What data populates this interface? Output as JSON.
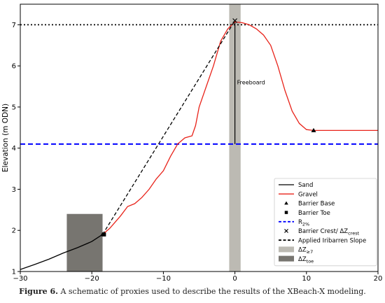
{
  "chart_data": {
    "type": "line",
    "xlabel": "",
    "ylabel": "Elevation (m ODN)",
    "xlim": [
      -30,
      20
    ],
    "ylim": [
      1,
      7.5
    ],
    "xticks": [
      -30,
      -20,
      -10,
      0,
      10,
      20
    ],
    "yticks": [
      1,
      2,
      3,
      4,
      5,
      6,
      7
    ],
    "grid": false,
    "legend_position": "lower-right",
    "series": [
      {
        "name": "Sand",
        "color": "#000000",
        "style": "solid",
        "points": [
          [
            -30,
            1.05
          ],
          [
            -28,
            1.17
          ],
          [
            -26,
            1.3
          ],
          [
            -24,
            1.45
          ],
          [
            -22,
            1.58
          ],
          [
            -20,
            1.73
          ],
          [
            -18.5,
            1.9
          ]
        ]
      },
      {
        "name": "Gravel",
        "color": "#e8231a",
        "style": "solid",
        "points": [
          [
            -18.5,
            1.9
          ],
          [
            -17.5,
            2.05
          ],
          [
            -16,
            2.35
          ],
          [
            -15,
            2.58
          ],
          [
            -14,
            2.65
          ],
          [
            -13,
            2.8
          ],
          [
            -12,
            3.0
          ],
          [
            -11,
            3.25
          ],
          [
            -10,
            3.45
          ],
          [
            -9,
            3.8
          ],
          [
            -8,
            4.1
          ],
          [
            -7,
            4.25
          ],
          [
            -6,
            4.3
          ],
          [
            -5.5,
            4.55
          ],
          [
            -5,
            5.0
          ],
          [
            -4,
            5.5
          ],
          [
            -3,
            6.0
          ],
          [
            -2,
            6.6
          ],
          [
            -1,
            6.9
          ],
          [
            0,
            7.07
          ],
          [
            1,
            7.05
          ],
          [
            2,
            7.0
          ],
          [
            3,
            6.9
          ],
          [
            4,
            6.75
          ],
          [
            5,
            6.5
          ],
          [
            6,
            6.0
          ],
          [
            7,
            5.4
          ],
          [
            8,
            4.9
          ],
          [
            9,
            4.6
          ],
          [
            10,
            4.45
          ],
          [
            11,
            4.43
          ],
          [
            20,
            4.43
          ]
        ]
      },
      {
        "name": "Applied Iribarren Slope",
        "color": "#000000",
        "style": "dashed",
        "points": [
          [
            -18.5,
            1.9
          ],
          [
            0,
            7.1
          ]
        ]
      }
    ],
    "reference_lines": [
      {
        "name": "R_2%",
        "axis": "y",
        "value": 4.1,
        "color": "#0000ff",
        "style": "dashed"
      },
      {
        "axis": "y",
        "value": 7.0,
        "color": "#000000",
        "style": "dotted"
      }
    ],
    "markers": [
      {
        "name": "Barrier Base",
        "symbol": "triangle",
        "x": 11,
        "y": 4.43
      },
      {
        "name": "Barrier Base",
        "symbol": "triangle",
        "x": -18.5,
        "y": 1.9
      },
      {
        "name": "Barrier Toe",
        "symbol": "square",
        "x": -18.3,
        "y": 1.9
      },
      {
        "name": "Barrier Crest/ ΔZ_crest",
        "symbol": "x",
        "x": 0,
        "y": 7.1
      }
    ],
    "shaded_regions": [
      {
        "name": "ΔZ_≥7",
        "x0": -0.8,
        "x1": 0.8,
        "y0": 1,
        "y1": 7.5,
        "color": "#bcbab3"
      },
      {
        "name": "ΔZ_toe",
        "x0": -23.5,
        "x1": -18.5,
        "y0": 1,
        "y1": 2.4,
        "color": "#777570"
      }
    ],
    "annotations": [
      {
        "text": "Freeboard",
        "x": 0.3,
        "y": 5.55
      }
    ],
    "freeboard_line": {
      "x": 0,
      "y0": 4.1,
      "y1": 7.1
    },
    "legend": [
      {
        "label": "Sand",
        "kind": "line",
        "color": "#000000",
        "style": "solid"
      },
      {
        "label": "Gravel",
        "kind": "line",
        "color": "#e8231a",
        "style": "solid"
      },
      {
        "label": "Barrier Base",
        "kind": "marker",
        "symbol": "triangle"
      },
      {
        "label": "Barrier Toe",
        "kind": "marker",
        "symbol": "square"
      },
      {
        "label": "R",
        "sub": "2%",
        "kind": "line",
        "color": "#0000ff",
        "style": "dashed"
      },
      {
        "label": "Barrier Crest/ ΔZ",
        "sub": "crest",
        "kind": "marker",
        "symbol": "x"
      },
      {
        "label": "Applied Iribarren Slope",
        "kind": "line",
        "color": "#000000",
        "style": "dashed"
      },
      {
        "label": "ΔZ",
        "sub": "≥7",
        "kind": "patch",
        "color": "#bcbab3"
      },
      {
        "label": "ΔZ",
        "sub": "toe",
        "kind": "patch",
        "color": "#777570"
      }
    ]
  },
  "caption": {
    "label": "Figure 6.",
    "text": " A schematic of proxies used to describe the results of the XBeach-X modeling."
  }
}
